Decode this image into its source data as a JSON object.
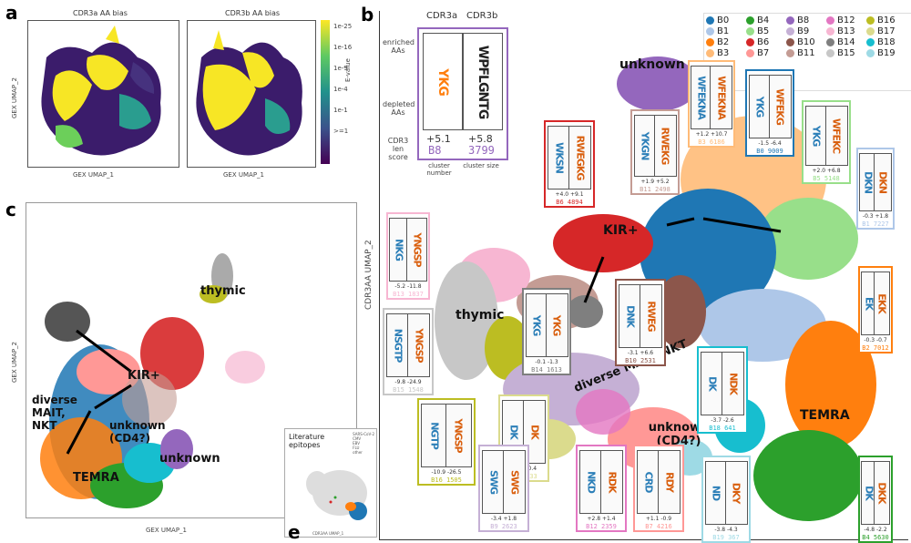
{
  "panels": {
    "a": {
      "letter": "a",
      "title_left": "CDR3a AA bias",
      "title_right": "CDR3b AA bias",
      "xlabel": "GEX UMAP_1",
      "ylabel": "GEX UMAP_2",
      "colorbar_label": "E-value",
      "colorbar_ticks": [
        "1e-25",
        "1e-16",
        "1e-9",
        "1e-4",
        "1e-1",
        ">=1"
      ]
    },
    "b": {
      "letter": "b",
      "ylabel": "CDR3AA UMAP_2"
    },
    "c": {
      "letter": "c",
      "xlabel": "GEX UMAP_1",
      "ylabel": "GEX UMAP_2"
    },
    "e": {
      "letter": "e",
      "inset_title": "Literature epitopes",
      "inset_x": "CDR3AA UMAP_1",
      "inset_legend": [
        "SARS-CoV-2",
        "CMV",
        "EBV",
        "FLU",
        "other"
      ]
    }
  },
  "key": {
    "header_a": "CDR3a",
    "header_b": "CDR3b",
    "enriched": "enriched AAs",
    "depleted": "depleted AAs",
    "len_score": "CDR3 len score",
    "score_a": "+5.1",
    "score_b": "+5.8",
    "id": "B8",
    "size": "3799",
    "cluster_number": "cluster number",
    "cluster_size": "cluster size"
  },
  "legend": [
    {
      "label": "B0",
      "color": "#1f77b4"
    },
    {
      "label": "B4",
      "color": "#2ca02c"
    },
    {
      "label": "B8",
      "color": "#9467bd"
    },
    {
      "label": "B12",
      "color": "#e377c2"
    },
    {
      "label": "B16",
      "color": "#bcbd22"
    },
    {
      "label": "B1",
      "color": "#aec7e8"
    },
    {
      "label": "B5",
      "color": "#98df8a"
    },
    {
      "label": "B9",
      "color": "#c5b0d5"
    },
    {
      "label": "B13",
      "color": "#f7b6d2"
    },
    {
      "label": "B17",
      "color": "#dbdb8d"
    },
    {
      "label": "B2",
      "color": "#ff7f0e"
    },
    {
      "label": "B6",
      "color": "#d62728"
    },
    {
      "label": "B10",
      "color": "#8c564b"
    },
    {
      "label": "B14",
      "color": "#7f7f7f"
    },
    {
      "label": "B18",
      "color": "#17becf"
    },
    {
      "label": "B3",
      "color": "#ffbb78"
    },
    {
      "label": "B7",
      "color": "#ff9896"
    },
    {
      "label": "B11",
      "color": "#c49c94"
    },
    {
      "label": "B15",
      "color": "#c7c7c7"
    },
    {
      "label": "B19",
      "color": "#9edae5"
    }
  ],
  "cluster_labels_b": {
    "unknown_top": "unknown",
    "kir": "KIR+",
    "thymic": "thymic",
    "mait": "diverse MAIT, NKT",
    "unknown_cd4": "unknown (CD4?)",
    "temra": "TEMRA"
  },
  "cluster_labels_c": {
    "thymic": "thymic",
    "kir": "KIR+",
    "diverse": "diverse MAIT, NKT",
    "unknown_cd4": "unknown (CD4?)",
    "unknown": "unknown",
    "temra": "TEMRA"
  },
  "logos": [
    {
      "id": "B8 3799",
      "scores": "+5.1  +5.8",
      "color": "#9467bd",
      "la": "YKG",
      "lb": "WPFLGNTG"
    },
    {
      "id": "B3 6186",
      "scores": "+1.2  +10.7",
      "color": "#ffbb78",
      "la": "WFEKNA",
      "lb": "WFEKNA"
    },
    {
      "id": "B0 9009",
      "scores": "-1.5  -6.4",
      "color": "#1f77b4",
      "la": "YKG",
      "lb": "WFEKG"
    },
    {
      "id": "B5 5148",
      "scores": "+2.0  +6.8",
      "color": "#98df8a",
      "la": "YKG",
      "lb": "WFEKC"
    },
    {
      "id": "B11 2498",
      "scores": "+1.9  +5.2",
      "color": "#c49c94",
      "la": "YKGN",
      "lb": "RWEKG"
    },
    {
      "id": "B6 4894",
      "scores": "+4.0  +9.1",
      "color": "#d62728",
      "la": "WKSN",
      "lb": "RWEGKG"
    },
    {
      "id": "B1 7227",
      "scores": "-0.3  +1.8",
      "color": "#aec7e8",
      "la": "DKN",
      "lb": "DKN"
    },
    {
      "id": "B13 1837",
      "scores": "-5.2  -11.8",
      "color": "#f7b6d2",
      "la": "NKG",
      "lb": "YNGSP"
    },
    {
      "id": "B2 7012",
      "scores": "-0.3  -0.7",
      "color": "#ff7f0e",
      "la": "EK",
      "lb": "EKK"
    },
    {
      "id": "B14 1613",
      "scores": "-0.1  -1.3",
      "color": "#7f7f7f",
      "la": "YKG",
      "lb": "YKG"
    },
    {
      "id": "B10 2531",
      "scores": "-3.1  +6.6",
      "color": "#8c564b",
      "la": "DNK",
      "lb": "RWEG"
    },
    {
      "id": "B15 1548",
      "scores": "-9.8  -24.9",
      "color": "#c7c7c7",
      "la": "NSGTP",
      "lb": "YNGSP"
    },
    {
      "id": "B18 641",
      "scores": "-3.7  -2.6",
      "color": "#17becf",
      "la": "DK",
      "lb": "NDK"
    },
    {
      "id": "B17 833",
      "scores": "-2.9  +0.4",
      "color": "#dbdb8d",
      "la": "DK",
      "lb": "DK"
    },
    {
      "id": "B16 1505",
      "scores": "-10.9  -26.5",
      "color": "#bcbd22",
      "la": "NGTP",
      "lb": "YNGSP"
    },
    {
      "id": "B9 2623",
      "scores": "-3.4  +1.8",
      "color": "#c5b0d5",
      "la": "SWG",
      "lb": "SWG"
    },
    {
      "id": "B12 2359",
      "scores": "+2.8  +1.4",
      "color": "#e377c2",
      "la": "NKD",
      "lb": "RDK"
    },
    {
      "id": "B7 4216",
      "scores": "+1.1  -0.9",
      "color": "#ff9896",
      "la": "CRD",
      "lb": "RDY"
    },
    {
      "id": "B19 367",
      "scores": "-3.8  -4.3",
      "color": "#9edae5",
      "la": "ND",
      "lb": "DKY"
    },
    {
      "id": "B4 5630",
      "scores": "-4.8  -2.2",
      "color": "#2ca02c",
      "la": "DK",
      "lb": "DKK"
    }
  ]
}
